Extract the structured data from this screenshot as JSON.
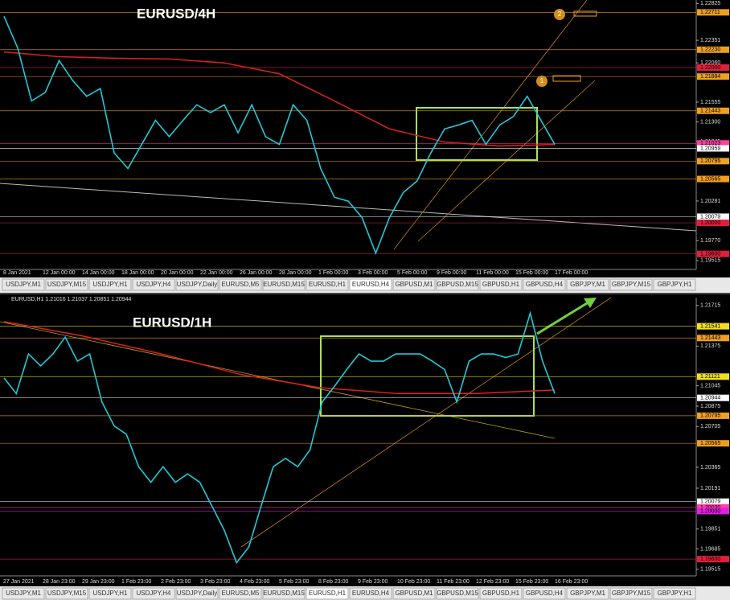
{
  "tabs": [
    "USDJPY,M1",
    "USDJPY,M15",
    "USDJPY,H1",
    "USDJPY,H4",
    "USDJPY,Daily",
    "EURUSD,M5",
    "EURUSD,M15",
    "EURUSD,H1",
    "EURUSD,H4",
    "GBPUSD,M1",
    "GBPUSD,M15",
    "GBPUSD,H1",
    "GBPUSD,H4",
    "GBPJPY,M1",
    "GBPJPY,M15",
    "GBPJPY,H1"
  ],
  "panels": [
    {
      "title": "EURUSD/4H",
      "active_tab": 8,
      "ylim": [
        1.194,
        1.2287
      ],
      "yticks": [
        1.22825,
        1.22351,
        {
          "value": 1.2206,
          "label": "1.22060"
        },
        1.21555,
        {
          "value": 1.213,
          "label": "1.21300"
        },
        1.21045,
        1.20281,
        {
          "value": 1.1977,
          "label": "1.19770"
        },
        1.19515
      ],
      "levels": [
        {
          "value": 1.22711,
          "label": "1.22711",
          "color": "#f0a020"
        },
        {
          "value": 1.2223,
          "label": "1.22230",
          "color": "#f0a020"
        },
        {
          "value": 1.22,
          "label": "1.22000",
          "color": "#e0203a"
        },
        {
          "value": 1.21884,
          "label": "1.21884",
          "color": "#f0a020"
        },
        {
          "value": 1.21443,
          "label": "1.21443",
          "color": "#f0a020"
        },
        {
          "value": 1.21023,
          "label": "1.21023",
          "color": "#ff40a0"
        },
        {
          "value": 1.20959,
          "label": "1.20959",
          "color": "#ffffff"
        },
        {
          "value": 1.20795,
          "label": "1.20795",
          "color": "#f0a020"
        },
        {
          "value": 1.20565,
          "label": "1.20565",
          "color": "#f0a020"
        },
        {
          "value": 1.20079,
          "label": "1.20079",
          "color": "#ffffff"
        },
        {
          "value": 1.2,
          "label": "1.20000",
          "color": "#e0203a"
        },
        {
          "value": 1.196,
          "label": "1.19600",
          "color": "#e0203a"
        }
      ],
      "time_labels": [
        "8 Jan 2021",
        "12 Jan 00:00",
        "14 Jan 00:00",
        "18 Jan 00:00",
        "20 Jan 00:00",
        "22 Jan 00:00",
        "26 Jan 00:00",
        "28 Jan 00:00",
        "1 Feb 00:00",
        "3 Feb 00:00",
        "5 Feb 00:00",
        "9 Feb 00:00",
        "11 Feb 00:00",
        "15 Feb 00:00",
        "17 Feb 00:00"
      ],
      "markers": [
        "1",
        "2"
      ],
      "price_line": {
        "color": "#22c8d8",
        "values": [
          1.2266,
          1.2225,
          1.2157,
          1.2168,
          1.2209,
          1.2183,
          1.2163,
          1.2173,
          1.209,
          1.207,
          1.2101,
          1.2132,
          1.2111,
          1.2132,
          1.2152,
          1.2142,
          1.2152,
          1.2116,
          1.2152,
          1.2111,
          1.2101,
          1.2152,
          1.2132,
          1.207,
          1.2033,
          1.2028,
          1.2007,
          1.1961,
          1.2007,
          1.2039,
          1.2054,
          1.209,
          1.2121,
          1.2126,
          1.2132,
          1.2101,
          1.2126,
          1.2137,
          1.2163,
          1.2132,
          1.2101
        ]
      },
      "ma_line": {
        "color": "#e02020",
        "values": [
          1.222,
          1.2214,
          1.2212,
          1.2211,
          1.2206,
          1.2192,
          1.2157,
          1.2121,
          1.2104,
          1.2099,
          1.2101
        ]
      }
    },
    {
      "title": "EURUSD/1H",
      "header": "EURUSD,H1  1.21016 1.21037 1.20851 1.20944",
      "active_tab": 7,
      "ylim": [
        1.1946,
        1.2178
      ],
      "yticks": [
        1.21715,
        1.21375,
        1.21045,
        1.20875,
        1.20705,
        1.20365,
        1.20191,
        1.19851,
        1.19685,
        1.19515
      ],
      "levels": [
        {
          "value": 1.21541,
          "label": "1.21541",
          "color": "#f0e020"
        },
        {
          "value": 1.21443,
          "label": "1.21443",
          "color": "#f0a020"
        },
        {
          "value": 1.21121,
          "label": "1.21121",
          "color": "#f0e020"
        },
        {
          "value": 1.20944,
          "label": "1.20944",
          "color": "#ffffff"
        },
        {
          "value": 1.20795,
          "label": "1.20795",
          "color": "#f0a020"
        },
        {
          "value": 1.20565,
          "label": "1.20565",
          "color": "#f0a020"
        },
        {
          "value": 1.20079,
          "label": "1.20079",
          "color": "#ffffff"
        },
        {
          "value": 1.2003,
          "label": "1.20030",
          "color": "#ff40a0"
        },
        {
          "value": 1.2,
          "label": "1.20000",
          "color": "#e020e0"
        },
        {
          "value": 1.196,
          "label": "1.19600",
          "color": "#e0203a"
        }
      ],
      "time_labels": [
        "27 Jan 2021",
        "28 Jan 23:00",
        "29 Jan 23:00",
        "1 Feb 23:00",
        "2 Feb 23:00",
        "3 Feb 23:00",
        "4 Feb 23:00",
        "5 Feb 23:00",
        "8 Feb 23:00",
        "9 Feb 23:00",
        "10 Feb 23:00",
        "11 Feb 23:00",
        "12 Feb 23:00",
        "15 Feb 23:00",
        "16 Feb 23:00"
      ],
      "price_line": {
        "color": "#22c8d8",
        "values": [
          1.2111,
          1.2098,
          1.2131,
          1.2121,
          1.2131,
          1.2145,
          1.2125,
          1.2131,
          1.2091,
          1.2071,
          1.2064,
          1.2037,
          1.2024,
          1.2037,
          1.2024,
          1.2031,
          1.2024,
          1.2004,
          1.1984,
          1.1957,
          1.197,
          1.2004,
          1.2037,
          1.2044,
          1.2037,
          1.2051,
          1.2091,
          1.2104,
          1.2118,
          1.2131,
          1.2125,
          1.2125,
          1.2131,
          1.2131,
          1.2131,
          1.2125,
          1.2118,
          1.2091,
          1.2125,
          1.2131,
          1.2131,
          1.2128,
          1.2131,
          1.2165,
          1.2125,
          1.2098
        ]
      },
      "ma_line": {
        "color": "#e02020",
        "values": [
          1.2158,
          1.2146,
          1.2131,
          1.2114,
          1.2103,
          1.2098,
          1.2098,
          1.2101
        ]
      }
    }
  ]
}
